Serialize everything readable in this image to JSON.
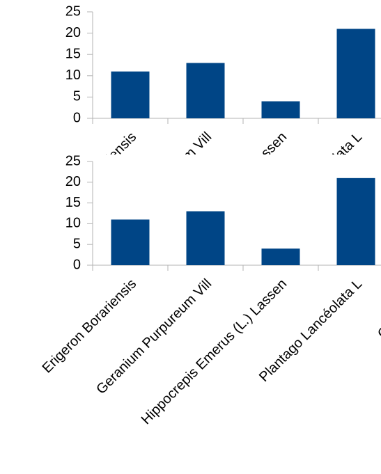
{
  "chart_data": [
    {
      "type": "bar",
      "categories": [
        "Erigeron Borariensis",
        "Geranium Purpureum Vill",
        "Hippocrepis Emerus (L.) Lassen",
        "Plantago Lancéolata L",
        "Geranium ro"
      ],
      "values": [
        11,
        13,
        4,
        21,
        null
      ],
      "color": "#004586",
      "ylim": [
        0,
        25
      ],
      "yticks": [
        0,
        5,
        10,
        15,
        20,
        25
      ],
      "grid": false
    },
    {
      "type": "bar",
      "categories": [
        "Erigeron Borariensis",
        "Geranium Purpureum Vill",
        "Hippocrepis Emerus (L.) Lassen",
        "Plantago Lancéolata L",
        "Geranium ro"
      ],
      "values": [
        11,
        13,
        4,
        21,
        null
      ],
      "color": "#004586",
      "ylim": [
        0,
        25
      ],
      "yticks": [
        0,
        5,
        10,
        15,
        20,
        25
      ],
      "grid": false
    }
  ]
}
